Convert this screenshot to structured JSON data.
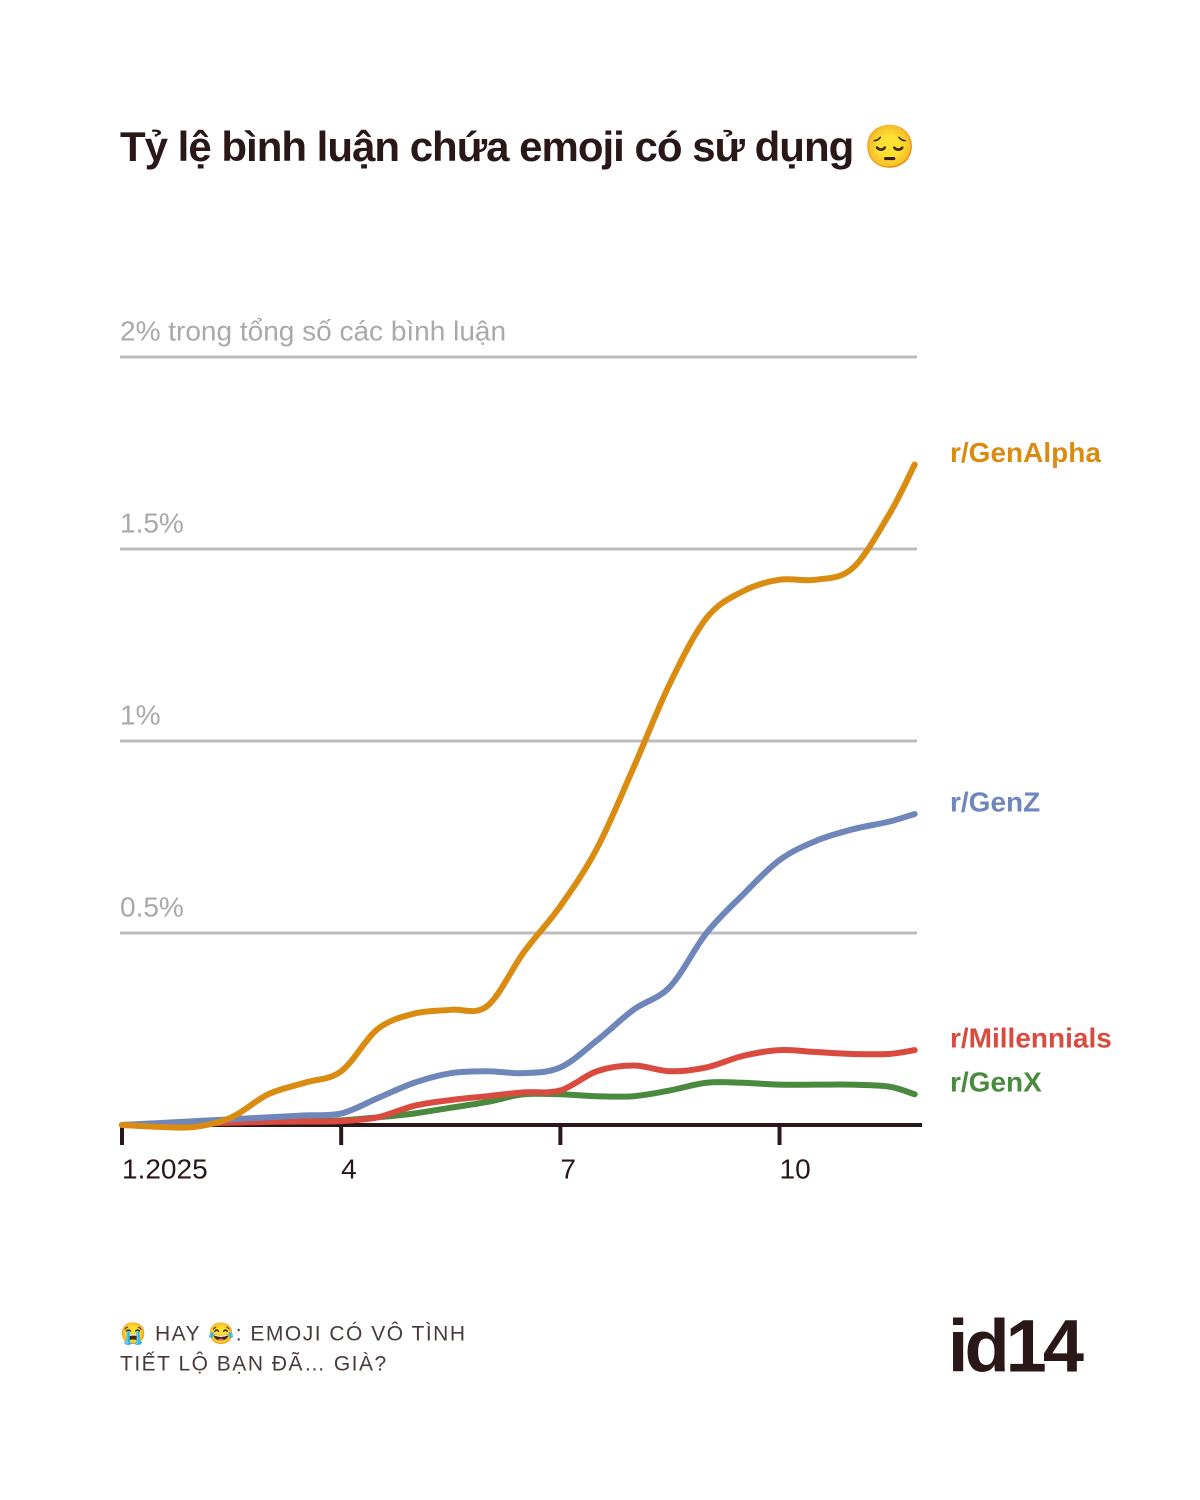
{
  "chart_data": {
    "type": "line",
    "title": "Tỷ lệ bình luận chứa emoji có sử dụng 😔",
    "x": [
      1,
      1.5,
      2,
      2.5,
      3,
      3.5,
      4,
      4.5,
      5,
      5.5,
      6,
      6.5,
      7,
      7.5,
      8,
      8.5,
      9,
      9.5,
      10,
      10.5,
      11,
      11.5,
      11.85
    ],
    "series": [
      {
        "name": "r/GenAlpha",
        "color": "#d98c10",
        "values": [
          0,
          -0.005,
          -0.005,
          0.02,
          0.08,
          0.11,
          0.14,
          0.25,
          0.29,
          0.3,
          0.31,
          0.45,
          0.57,
          0.72,
          0.93,
          1.15,
          1.32,
          1.39,
          1.42,
          1.42,
          1.45,
          1.59,
          1.72
        ]
      },
      {
        "name": "r/GenZ",
        "color": "#6f86bb",
        "values": [
          0,
          0.005,
          0.01,
          0.015,
          0.02,
          0.025,
          0.03,
          0.07,
          0.11,
          0.135,
          0.14,
          0.135,
          0.15,
          0.22,
          0.3,
          0.36,
          0.5,
          0.6,
          0.69,
          0.74,
          0.77,
          0.79,
          0.81
        ]
      },
      {
        "name": "r/Millennials",
        "color": "#d94a3f",
        "values": [
          0,
          0.002,
          0.004,
          0.006,
          0.008,
          0.009,
          0.01,
          0.02,
          0.05,
          0.065,
          0.075,
          0.085,
          0.09,
          0.14,
          0.155,
          0.14,
          0.15,
          0.18,
          0.195,
          0.19,
          0.185,
          0.185,
          0.195
        ]
      },
      {
        "name": "r/GenX",
        "color": "#4a8a3f",
        "values": [
          0,
          0.003,
          0.005,
          0.007,
          0.009,
          0.01,
          0.012,
          0.02,
          0.03,
          0.045,
          0.06,
          0.08,
          0.08,
          0.075,
          0.075,
          0.09,
          0.11,
          0.11,
          0.105,
          0.105,
          0.105,
          0.1,
          0.08
        ]
      }
    ],
    "xlim": [
      1,
      11.95
    ],
    "xticks": [
      {
        "value": 1,
        "label": "1.2025"
      },
      4,
      7,
      10
    ],
    "ylim": [
      0,
      2
    ],
    "yticks": [
      {
        "value": 0.5,
        "label": "0.5%"
      },
      {
        "value": 1,
        "label": "1%"
      },
      {
        "value": 1.5,
        "label": "1.5%"
      },
      {
        "value": 2,
        "label": "2% trong tổng số các bình luận"
      }
    ],
    "grid": true,
    "footer": [
      "😭 HAY 😂: EMOJI CÓ VÔ TÌNH",
      "TIẾT LỘ BẠN ĐÃ… GIÀ?"
    ],
    "logo": "id14"
  }
}
